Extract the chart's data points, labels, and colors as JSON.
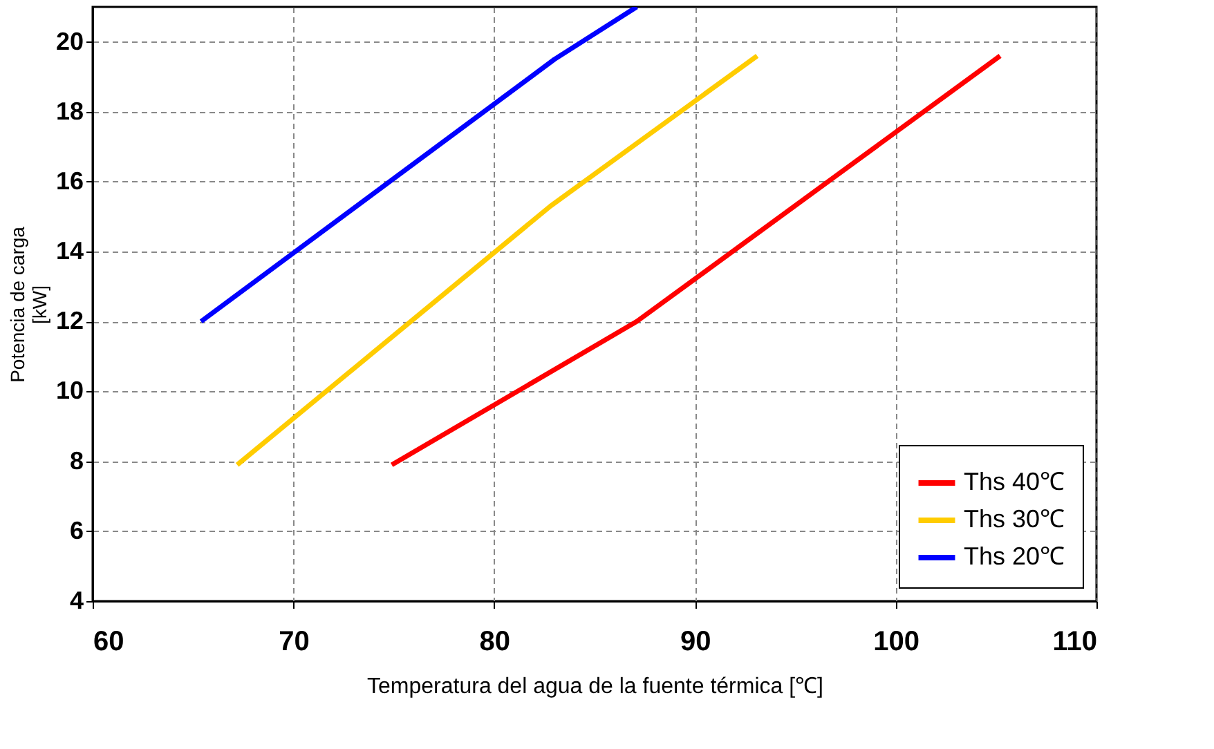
{
  "chart_data": {
    "type": "line",
    "xlabel": "Temperatura del agua de la fuente térmica [℃]",
    "ylabel": "Potencia de carga [kW]",
    "xlim": [
      60,
      110
    ],
    "xticks": [
      60,
      70,
      80,
      90,
      100,
      110
    ],
    "ylim": [
      4,
      21
    ],
    "yticks": [
      4,
      6,
      8,
      10,
      12,
      14,
      16,
      18,
      20
    ],
    "grid": true,
    "legend": "bottom right",
    "marker": "none",
    "line_style": "solid",
    "series": [
      {
        "name": "Ths 40℃",
        "color": "#ff0000",
        "x": [
          74.9,
          87.1,
          105.2
        ],
        "values": [
          7.9,
          12.0,
          19.6
        ]
      },
      {
        "name": "Ths 30℃",
        "color": "#ffcc00",
        "x": [
          67.2,
          82.8,
          93.1
        ],
        "values": [
          7.9,
          15.3,
          19.6
        ]
      },
      {
        "name": "Ths 20℃",
        "color": "#0000ff",
        "x": [
          65.4,
          83.0,
          87.1
        ],
        "values": [
          12.0,
          19.5,
          21.0
        ]
      }
    ]
  }
}
